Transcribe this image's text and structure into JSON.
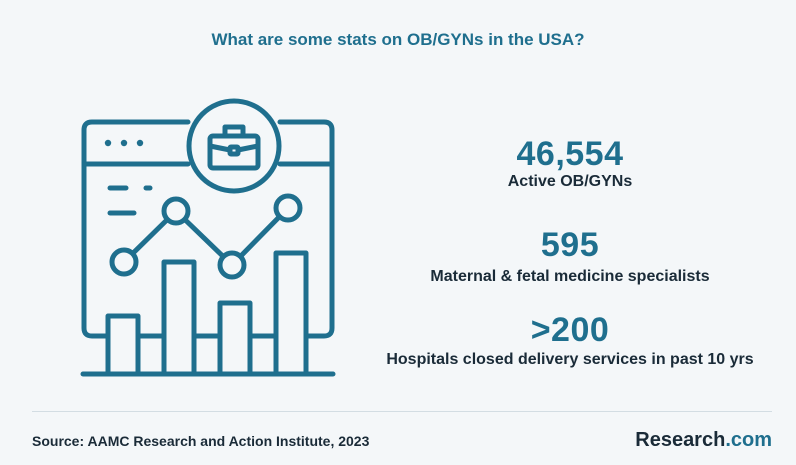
{
  "header": {
    "title": "What are some stats on OB/GYNs in the USA?"
  },
  "illustration": {
    "icon": "briefcase-chart-icon",
    "stroke_color": "#1f6f8e"
  },
  "stats": [
    {
      "value": "46,554",
      "label": "Active OB/GYNs"
    },
    {
      "value": "595",
      "label": "Maternal & fetal medicine specialists"
    },
    {
      "value": ">200",
      "label": "Hospitals closed delivery services in past 10 yrs"
    }
  ],
  "footer": {
    "source": "Source:  AAMC Research and Action Institute, 2023",
    "brand_name": "Research",
    "brand_suffix": ".com"
  },
  "colors": {
    "accent": "#1f6f8e",
    "text": "#1a2b38",
    "background": "#f4f7f9"
  }
}
